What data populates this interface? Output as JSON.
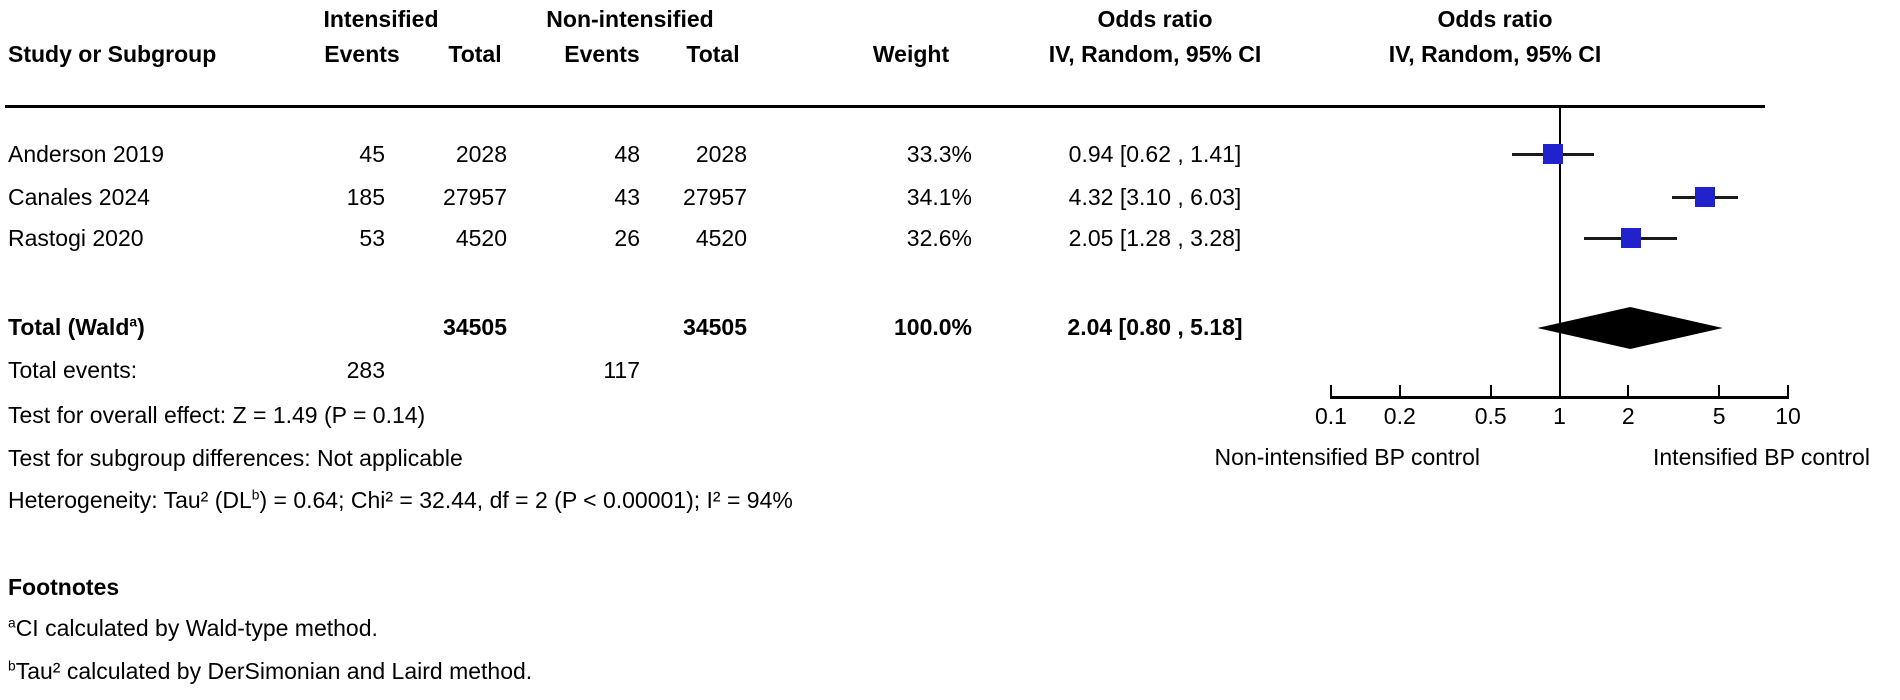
{
  "colors": {
    "square": "#2121cd",
    "diamond": "#000000",
    "line": "#000000"
  },
  "table": {
    "group1_header": "Intensified",
    "group2_header": "Non-intensified",
    "or_text_header": {
      "line1": "Odds ratio",
      "line2": "IV, Random, 95% CI"
    },
    "or_plot_header": {
      "line1": "Odds ratio",
      "line2": "IV, Random, 95% CI"
    },
    "columns": {
      "study": "Study or Subgroup",
      "events": "Events",
      "total": "Total",
      "weight": "Weight"
    },
    "rows": [
      {
        "study": "Anderson 2019",
        "e1": "45",
        "t1": "2028",
        "e2": "48",
        "t2": "2028",
        "weight": "33.3%",
        "or": "0.94 [0.62 , 1.41]"
      },
      {
        "study": "Canales 2024",
        "e1": "185",
        "t1": "27957",
        "e2": "43",
        "t2": "27957",
        "weight": "34.1%",
        "or": "4.32 [3.10 , 6.03]"
      },
      {
        "study": "Rastogi 2020",
        "e1": "53",
        "t1": "4520",
        "e2": "26",
        "t2": "4520",
        "weight": "32.6%",
        "or": "2.05 [1.28 , 3.28]"
      }
    ],
    "total_row": {
      "label_pre": "Total (Wald",
      "label_sup": "a",
      "label_post": ")",
      "t1": "34505",
      "t2": "34505",
      "weight": "100.0%",
      "or": "2.04 [0.80 , 5.18]"
    },
    "total_events": {
      "label": "Total events:",
      "e1": "283",
      "e2": "117"
    }
  },
  "stats": {
    "overall_effect": "Test for overall effect: Z = 1.49 (P = 0.14)",
    "subgroup_diff": "Test for subgroup differences: Not applicable",
    "heterogeneity_pre": "Heterogeneity: Tau² (DL",
    "heterogeneity_sup": "b",
    "heterogeneity_post": ") = 0.64; Chi² = 32.44, df = 2 (P < 0.00001); I² = 94%"
  },
  "footnotes": {
    "title": "Footnotes",
    "a_sup": "a",
    "a_text": "CI calculated by Wald-type method.",
    "b_sup": "b",
    "b_text": "Tau² calculated by DerSimonian and Laird method."
  },
  "chart_data": {
    "type": "forest",
    "title": "Odds ratio",
    "model": "IV, Random, 95% CI",
    "x_scale": "log10",
    "axis": {
      "min": 0.1,
      "max": 10,
      "ticks": [
        "0.1",
        "0.2",
        "0.5",
        "1",
        "2",
        "5",
        "10"
      ],
      "null_line": 1
    },
    "direction_labels": {
      "left": "Non-intensified BP control",
      "right": "Intensified BP control"
    },
    "studies": [
      {
        "name": "Anderson 2019",
        "or": 0.94,
        "ci_low": 0.62,
        "ci_high": 1.41,
        "weight_pct": 33.3
      },
      {
        "name": "Canales 2024",
        "or": 4.32,
        "ci_low": 3.1,
        "ci_high": 6.03,
        "weight_pct": 34.1
      },
      {
        "name": "Rastogi 2020",
        "or": 2.05,
        "ci_low": 1.28,
        "ci_high": 3.28,
        "weight_pct": 32.6
      }
    ],
    "total": {
      "label": "Total (Wald)",
      "or": 2.04,
      "ci_low": 0.8,
      "ci_high": 5.18,
      "weight_pct": 100.0
    }
  }
}
